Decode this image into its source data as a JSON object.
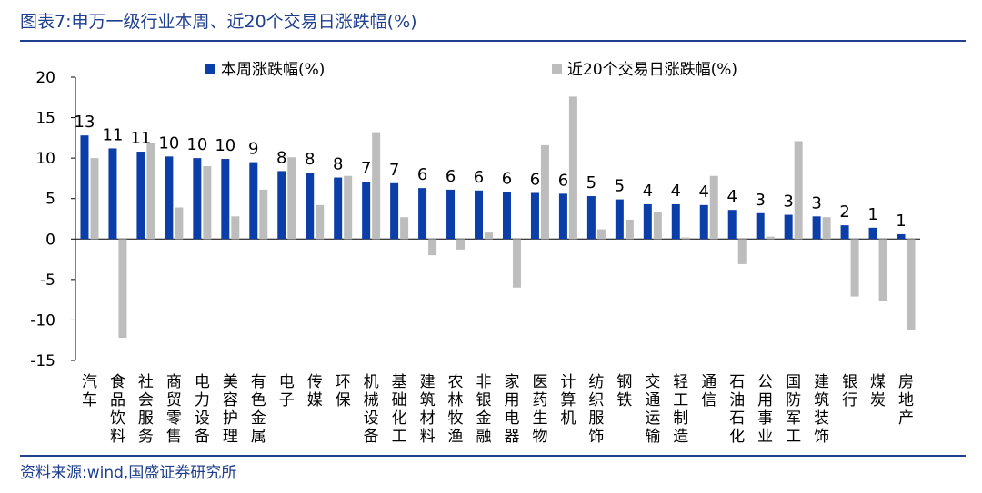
{
  "title": "图表7:申万一级行业本周、近20个交易日涨跌幅(%)",
  "source": "资料来源:wind,国盛证券研究所",
  "colors": {
    "series1": "#0b3ea8",
    "series2": "#bdbdbd",
    "accent": "#1f3f8f"
  },
  "chart_data": {
    "type": "bar",
    "categories": [
      "汽车",
      "食品饮料",
      "社会服务",
      "商贸零售",
      "电力设备",
      "美容护理",
      "有色金属",
      "电子",
      "传媒",
      "环保",
      "机械设备",
      "基础化工",
      "建筑材料",
      "农林牧渔",
      "非银金融",
      "家用电器",
      "医药生物",
      "计算机",
      "纺织服饰",
      "钢铁",
      "交通运输",
      "轻工制造",
      "通信",
      "石油石化",
      "公用事业",
      "国防军工",
      "建筑装饰",
      "银行",
      "煤炭",
      "房地产"
    ],
    "series": [
      {
        "name": "本周涨跌幅(%)",
        "values": [
          12.8,
          11.2,
          10.8,
          10.2,
          10.0,
          9.9,
          9.5,
          8.4,
          8.2,
          7.6,
          7.1,
          6.9,
          6.3,
          6.1,
          6.0,
          5.8,
          5.7,
          5.6,
          5.3,
          4.9,
          4.3,
          4.3,
          4.2,
          3.6,
          3.2,
          3.0,
          2.8,
          1.7,
          1.4,
          0.6
        ],
        "data_labels": [
          "13",
          "11",
          "11",
          "10",
          "10",
          "10",
          "9",
          "8",
          "8",
          "8",
          "7",
          "7",
          "6",
          "6",
          "6",
          "6",
          "6",
          "6",
          "5",
          "5",
          "4",
          "4",
          "4",
          "4",
          "3",
          "3",
          "3",
          "2",
          "1",
          "1"
        ]
      },
      {
        "name": "近20个交易日涨跌幅(%)",
        "values": [
          10.0,
          -12.2,
          11.9,
          3.9,
          9.0,
          2.8,
          6.1,
          10.1,
          4.2,
          7.8,
          13.2,
          2.7,
          -2.0,
          -1.3,
          0.8,
          -6.0,
          11.6,
          17.6,
          1.2,
          2.4,
          3.3,
          0.2,
          7.8,
          -3.1,
          0.3,
          12.1,
          2.7,
          -7.1,
          -7.7,
          -11.2
        ]
      }
    ],
    "ylim": [
      -15,
      20
    ],
    "yticks": [
      -15,
      -10,
      -5,
      0,
      5,
      10,
      15,
      20
    ],
    "legend": "top",
    "grid": false
  }
}
